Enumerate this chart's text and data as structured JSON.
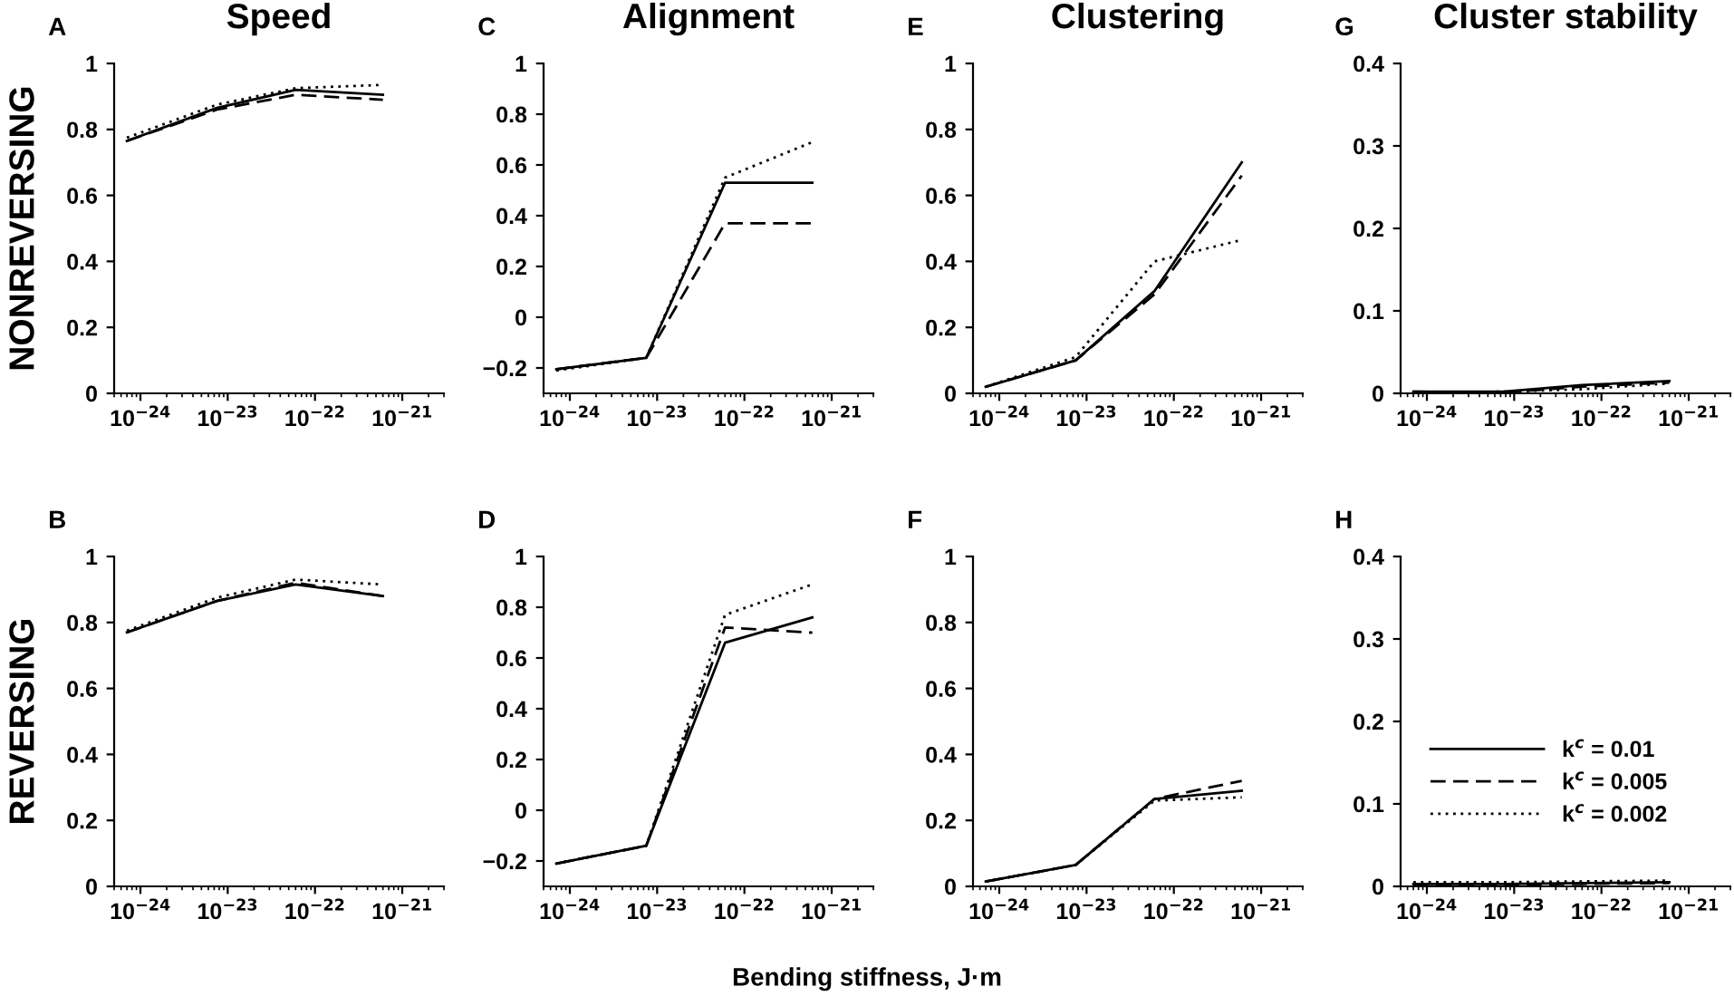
{
  "chart_data": [
    {
      "type": "line",
      "title": "Speed",
      "ylabel": "NONREVERSING",
      "annotations": [
        "A"
      ],
      "x": [
        7e-25,
        7.5e-24,
        6e-23,
        6e-22
      ],
      "log": "x",
      "xlim": [
        5e-25,
        3e-21
      ],
      "ylim": [
        0,
        1
      ],
      "yticks": [
        0,
        0.2,
        0.4,
        0.6,
        0.8,
        1
      ],
      "xticks": [
        {
          "value": 1e-24,
          "label": "10$^{−24}$"
        },
        {
          "value": 1e-23,
          "label": "10$^{−23}$"
        },
        {
          "value": 1e-22,
          "label": "10$^{−22}$"
        },
        {
          "value": 1e-21,
          "label": "10$^{−21}$"
        }
      ],
      "grid": false,
      "legend": false,
      "series": [
        {
          "color": "#000000",
          "line_style": "solid",
          "values": [
            0.765,
            0.865,
            0.92,
            0.905
          ]
        },
        {
          "color": "#000000",
          "line_style": "dashed",
          "values": [
            0.765,
            0.86,
            0.905,
            0.89
          ]
        },
        {
          "color": "#000000",
          "line_style": "dotted",
          "values": [
            0.775,
            0.875,
            0.925,
            0.935
          ]
        }
      ]
    },
    {
      "type": "line",
      "title": "Alignment",
      "annotations": [
        "C"
      ],
      "x": [
        7e-25,
        7.5e-24,
        6e-23,
        6e-22
      ],
      "log": "x",
      "xlim": [
        5e-25,
        3e-21
      ],
      "ylim": [
        -0.3,
        1
      ],
      "yticks": [
        {
          "value": -0.2,
          "label": "−0.2"
        },
        0,
        0.2,
        0.4,
        0.6,
        0.8,
        1
      ],
      "xticks": [
        {
          "value": 1e-24,
          "label": "10$^{−24}$"
        },
        {
          "value": 1e-23,
          "label": "10$^{−23}$"
        },
        {
          "value": 1e-22,
          "label": "10$^{−22}$"
        },
        {
          "value": 1e-21,
          "label": "10$^{−21}$"
        }
      ],
      "grid": false,
      "legend": false,
      "series": [
        {
          "color": "#000000",
          "line_style": "solid",
          "values": [
            -0.205,
            -0.16,
            0.53,
            0.53
          ]
        },
        {
          "color": "#000000",
          "line_style": "dashed",
          "values": [
            -0.205,
            -0.16,
            0.37,
            0.37
          ]
        },
        {
          "color": "#000000",
          "line_style": "dotted",
          "values": [
            -0.21,
            -0.16,
            0.55,
            0.69
          ]
        }
      ]
    },
    {
      "type": "line",
      "title": "Clustering",
      "annotations": [
        "E"
      ],
      "x": [
        7e-25,
        7.5e-24,
        6e-23,
        6e-22
      ],
      "log": "x",
      "xlim": [
        5e-25,
        3e-21
      ],
      "ylim": [
        0,
        1
      ],
      "yticks": [
        0,
        0.2,
        0.4,
        0.6,
        0.8,
        1
      ],
      "xticks": [
        {
          "value": 1e-24,
          "label": "10$^{−24}$"
        },
        {
          "value": 1e-23,
          "label": "10$^{−23}$"
        },
        {
          "value": 1e-22,
          "label": "10$^{−22}$"
        },
        {
          "value": 1e-21,
          "label": "10$^{−21}$"
        }
      ],
      "grid": false,
      "legend": false,
      "series": [
        {
          "color": "#000000",
          "line_style": "solid",
          "values": [
            0.02,
            0.1,
            0.31,
            0.7
          ]
        },
        {
          "color": "#000000",
          "line_style": "dashed",
          "values": [
            0.02,
            0.1,
            0.3,
            0.66
          ]
        },
        {
          "color": "#000000",
          "line_style": "dotted",
          "values": [
            0.02,
            0.11,
            0.4,
            0.465
          ]
        }
      ]
    },
    {
      "type": "line",
      "title": "Cluster stability",
      "annotations": [
        "G"
      ],
      "x": [
        7e-25,
        7.5e-24,
        6e-23,
        6e-22
      ],
      "log": "x",
      "xlim": [
        5e-25,
        3e-21
      ],
      "ylim": [
        0,
        0.4
      ],
      "yticks": [
        0,
        0.1,
        0.2,
        0.3,
        0.4
      ],
      "xticks": [
        {
          "value": 1e-24,
          "label": "10$^{−24}$"
        },
        {
          "value": 1e-23,
          "label": "10$^{−23}$"
        },
        {
          "value": 1e-22,
          "label": "10$^{−22}$"
        },
        {
          "value": 1e-21,
          "label": "10$^{−21}$"
        }
      ],
      "grid": false,
      "legend": false,
      "series": [
        {
          "color": "#000000",
          "line_style": "solid",
          "values": [
            0.002,
            0.002,
            0.01,
            0.015
          ]
        },
        {
          "color": "#000000",
          "line_style": "dashed",
          "values": [
            0.002,
            0.001,
            0.008,
            0.013
          ]
        },
        {
          "color": "#000000",
          "line_style": "dotted",
          "values": [
            0.001,
            0.002,
            0.005,
            0.012
          ]
        }
      ]
    },
    {
      "type": "line",
      "ylabel": "REVERSING",
      "annotations": [
        "B"
      ],
      "x": [
        7e-25,
        7.5e-24,
        6e-23,
        6e-22
      ],
      "log": "x",
      "xlim": [
        5e-25,
        3e-21
      ],
      "ylim": [
        0,
        1
      ],
      "yticks": [
        0,
        0.2,
        0.4,
        0.6,
        0.8,
        1
      ],
      "xticks": [
        {
          "value": 1e-24,
          "label": "10$^{−24}$"
        },
        {
          "value": 1e-23,
          "label": "10$^{−23}$"
        },
        {
          "value": 1e-22,
          "label": "10$^{−22}$"
        },
        {
          "value": 1e-21,
          "label": "10$^{−21}$"
        }
      ],
      "grid": false,
      "legend": false,
      "series": [
        {
          "color": "#000000",
          "line_style": "solid",
          "values": [
            0.77,
            0.865,
            0.915,
            0.88
          ]
        },
        {
          "color": "#000000",
          "line_style": "dashed",
          "values": [
            0.77,
            0.865,
            0.92,
            0.88
          ]
        },
        {
          "color": "#000000",
          "line_style": "dotted",
          "values": [
            0.775,
            0.875,
            0.93,
            0.915
          ]
        }
      ]
    },
    {
      "type": "line",
      "annotations": [
        "D"
      ],
      "x": [
        7e-25,
        7.5e-24,
        6e-23,
        6e-22
      ],
      "log": "x",
      "xlim": [
        5e-25,
        3e-21
      ],
      "ylim": [
        -0.3,
        1
      ],
      "yticks": [
        {
          "value": -0.2,
          "label": "−0.2"
        },
        0,
        0.2,
        0.4,
        0.6,
        0.8,
        1
      ],
      "xticks": [
        {
          "value": 1e-24,
          "label": "10$^{−24}$"
        },
        {
          "value": 1e-23,
          "label": "10$^{−23}$"
        },
        {
          "value": 1e-22,
          "label": "10$^{−22}$"
        },
        {
          "value": 1e-21,
          "label": "10$^{−21}$"
        }
      ],
      "grid": false,
      "legend": false,
      "series": [
        {
          "color": "#000000",
          "line_style": "solid",
          "values": [
            -0.21,
            -0.14,
            0.66,
            0.76
          ]
        },
        {
          "color": "#000000",
          "line_style": "dashed",
          "values": [
            -0.21,
            -0.14,
            0.72,
            0.7
          ]
        },
        {
          "color": "#000000",
          "line_style": "dotted",
          "values": [
            -0.21,
            -0.14,
            0.77,
            0.89
          ]
        }
      ]
    },
    {
      "type": "line",
      "xlabel": "Bending stiffness, J·m",
      "annotations": [
        "F"
      ],
      "x": [
        7e-25,
        7.5e-24,
        6e-23,
        6e-22
      ],
      "log": "x",
      "xlim": [
        5e-25,
        3e-21
      ],
      "ylim": [
        0,
        1
      ],
      "yticks": [
        0,
        0.2,
        0.4,
        0.6,
        0.8,
        1
      ],
      "xticks": [
        {
          "value": 1e-24,
          "label": "10$^{−24}$"
        },
        {
          "value": 1e-23,
          "label": "10$^{−23}$"
        },
        {
          "value": 1e-22,
          "label": "10$^{−22}$"
        },
        {
          "value": 1e-21,
          "label": "10$^{−21}$"
        }
      ],
      "grid": false,
      "legend": false,
      "series": [
        {
          "color": "#000000",
          "line_style": "solid",
          "values": [
            0.015,
            0.065,
            0.265,
            0.29
          ]
        },
        {
          "color": "#000000",
          "line_style": "dashed",
          "values": [
            0.015,
            0.065,
            0.265,
            0.32
          ]
        },
        {
          "color": "#000000",
          "line_style": "dotted",
          "values": [
            0.015,
            0.065,
            0.26,
            0.27
          ]
        }
      ]
    },
    {
      "type": "line",
      "annotations": [
        "H"
      ],
      "x": [
        7e-25,
        7.5e-24,
        6e-23,
        6e-22
      ],
      "log": "x",
      "xlim": [
        5e-25,
        3e-21
      ],
      "ylim": [
        0,
        0.4
      ],
      "yticks": [
        0,
        0.1,
        0.2,
        0.3,
        0.4
      ],
      "xticks": [
        {
          "value": 1e-24,
          "label": "10$^{−24}$"
        },
        {
          "value": 1e-23,
          "label": "10$^{−23}$"
        },
        {
          "value": 1e-22,
          "label": "10$^{−22}$"
        },
        {
          "value": 1e-21,
          "label": "10$^{−21}$"
        }
      ],
      "grid": false,
      "legend": "bottom",
      "series": [
        {
          "name": "k$^{c}$ = 0.01",
          "color": "#000000",
          "line_style": "solid",
          "values": [
            0.003,
            0.003,
            0.004,
            0.005
          ]
        },
        {
          "name": "k$^{c}$ = 0.005",
          "color": "#000000",
          "line_style": "dashed",
          "values": [
            0.002,
            0.002,
            0.003,
            0.004
          ]
        },
        {
          "name": "k$^{c}$ = 0.002",
          "color": "#000000",
          "line_style": "dotted",
          "values": [
            0.005,
            0.005,
            0.006,
            0.007
          ]
        }
      ]
    }
  ]
}
